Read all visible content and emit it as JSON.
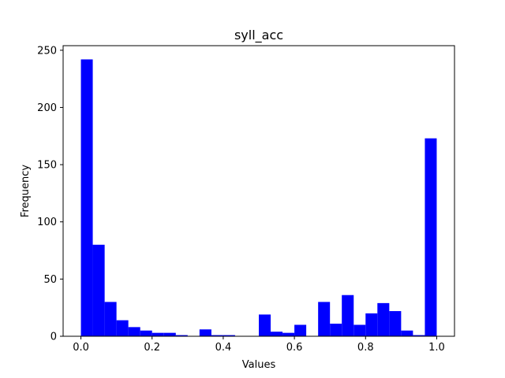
{
  "chart_data": {
    "type": "bar",
    "title": "syll_acc",
    "xlabel": "Values",
    "ylabel": "Frequency",
    "xlim": [
      -0.05,
      1.05
    ],
    "ylim": [
      0,
      254
    ],
    "xticks": [
      0.0,
      0.2,
      0.4,
      0.6,
      0.8,
      1.0
    ],
    "xtick_labels": [
      "0.0",
      "0.2",
      "0.4",
      "0.6",
      "0.8",
      "1.0"
    ],
    "yticks": [
      0,
      50,
      100,
      150,
      200,
      250
    ],
    "ytick_labels": [
      "0",
      "50",
      "100",
      "150",
      "200",
      "250"
    ],
    "bin_edges": [
      0.0,
      0.0333,
      0.0667,
      0.1,
      0.1333,
      0.1667,
      0.2,
      0.2333,
      0.2667,
      0.3,
      0.3333,
      0.3667,
      0.4,
      0.4333,
      0.4667,
      0.5,
      0.5333,
      0.5667,
      0.6,
      0.6333,
      0.6667,
      0.7,
      0.7333,
      0.7667,
      0.8,
      0.8333,
      0.8667,
      0.9,
      0.9333,
      0.9667,
      1.0
    ],
    "values": [
      242,
      80,
      30,
      14,
      8,
      5,
      3,
      3,
      1,
      0,
      6,
      1,
      1,
      0,
      0,
      19,
      4,
      3,
      10,
      0,
      30,
      11,
      36,
      10,
      20,
      29,
      22,
      5,
      1,
      173
    ],
    "bar_color": "#0000ff",
    "grid": false
  }
}
